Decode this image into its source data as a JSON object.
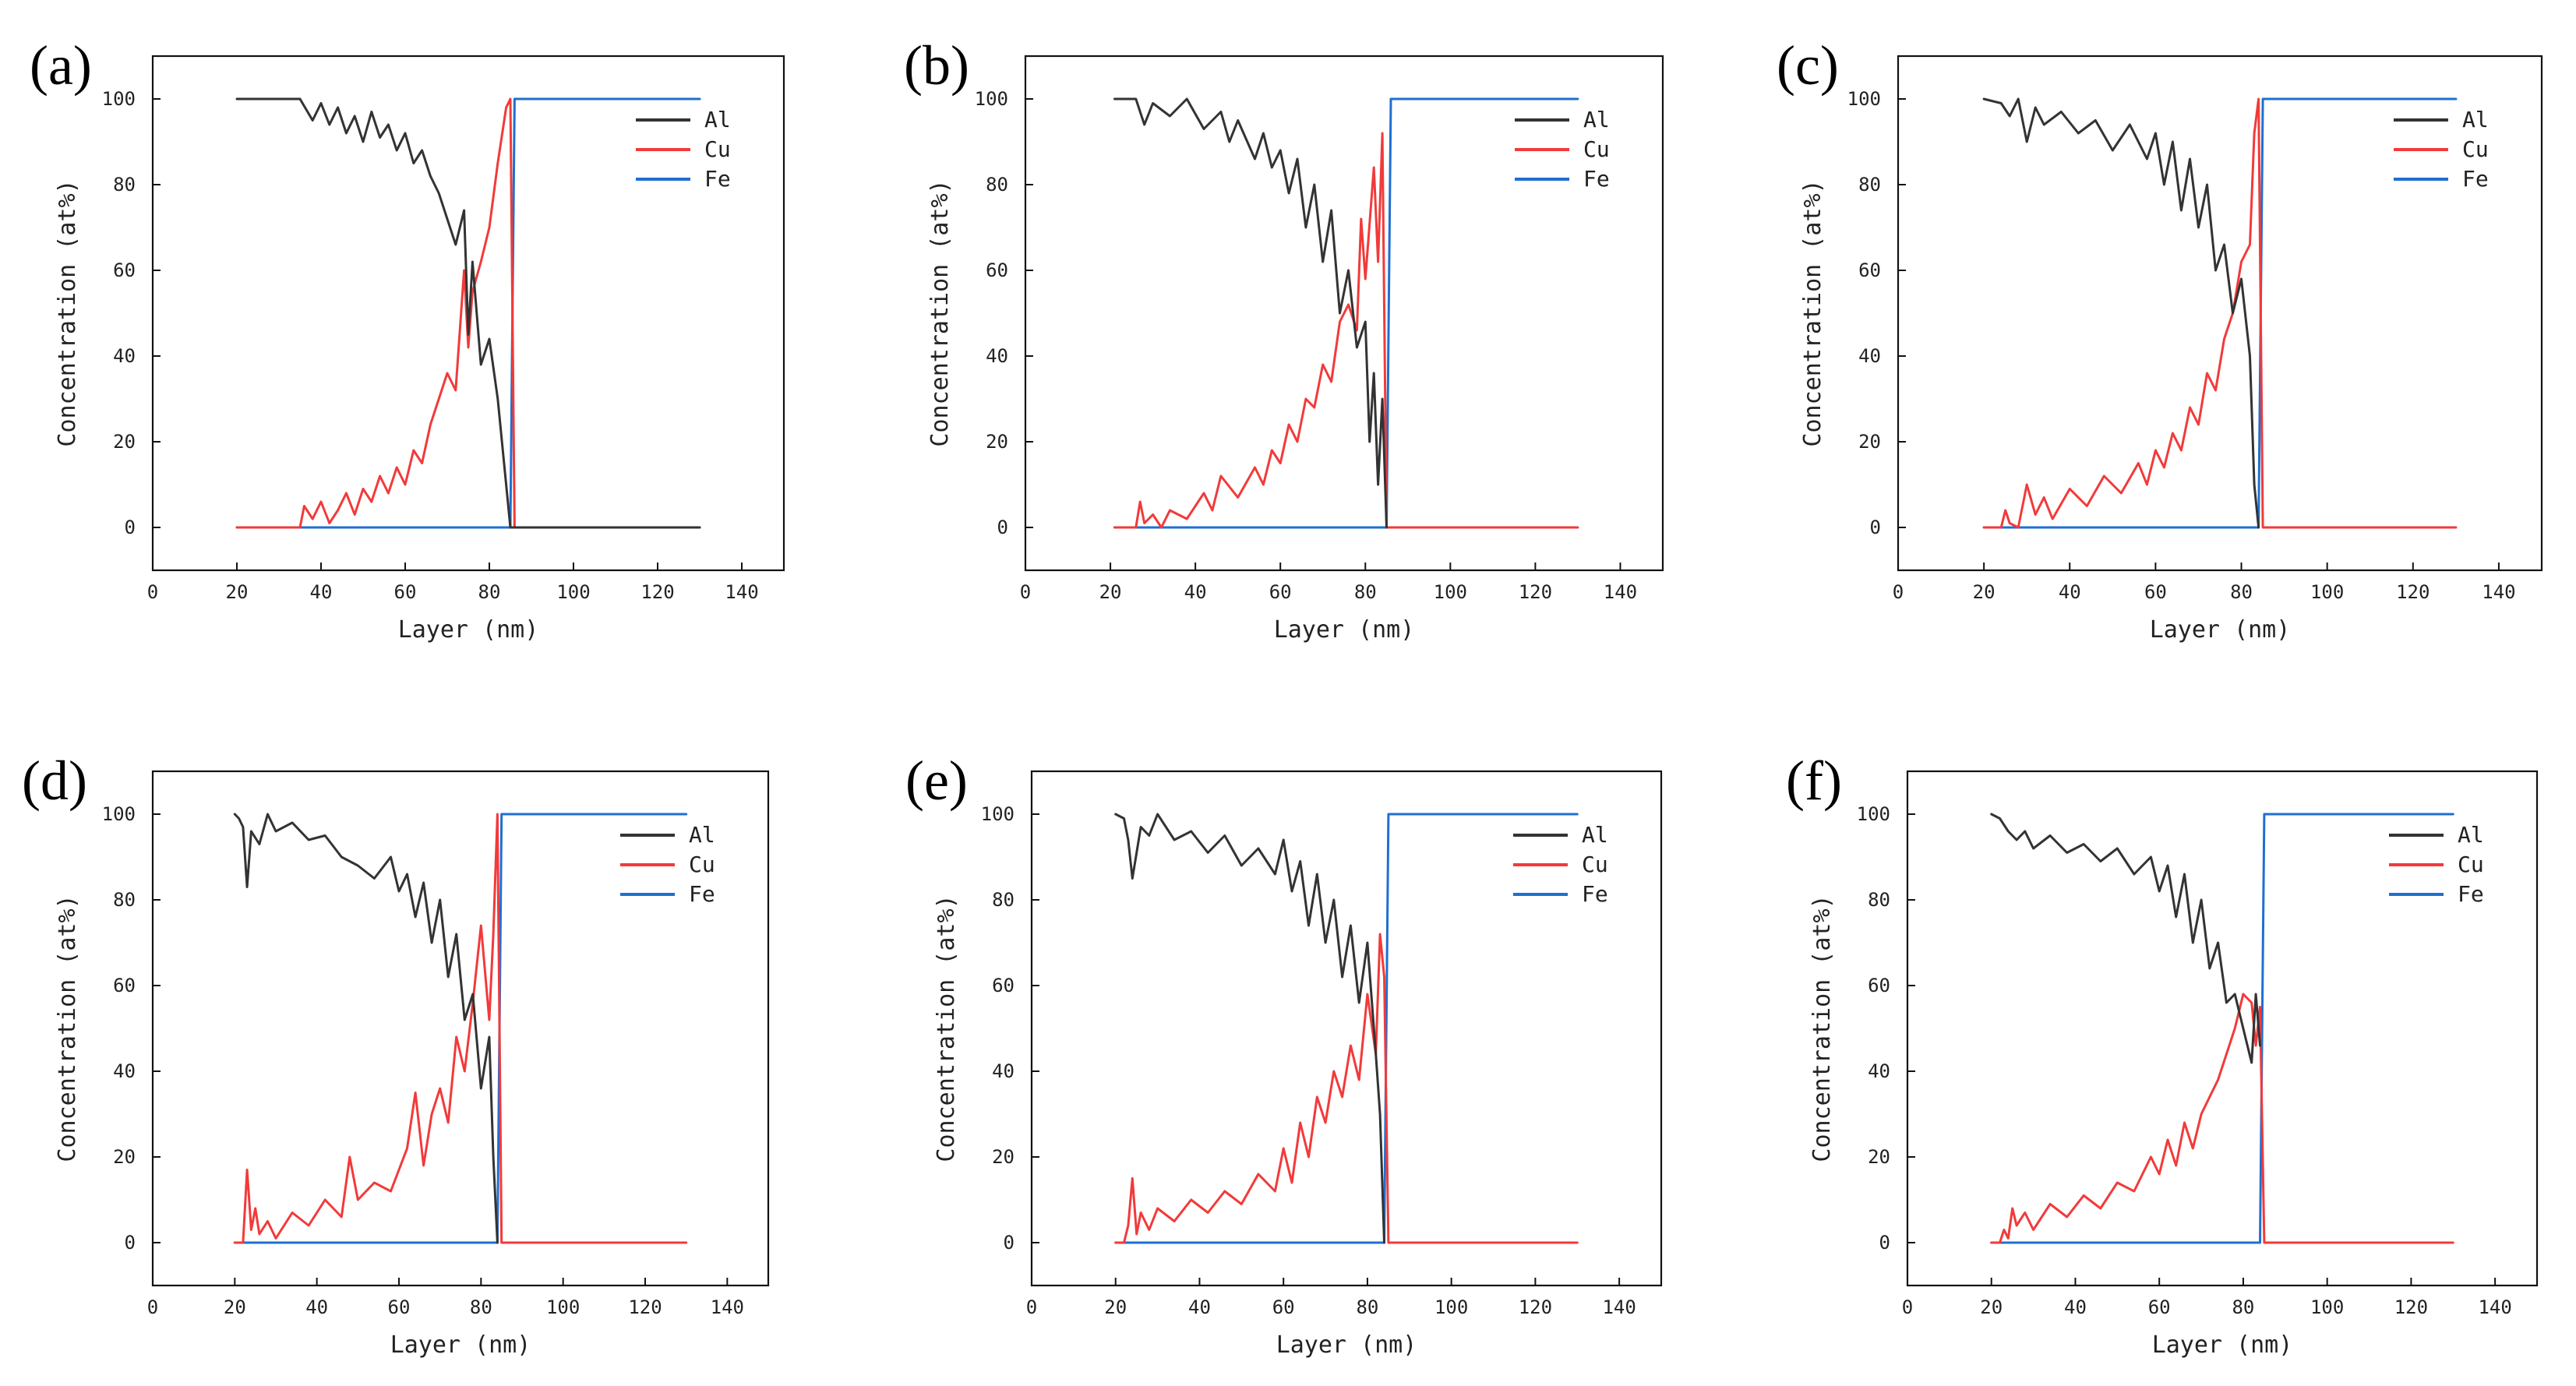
{
  "figure": {
    "panels": [
      "(a)",
      "(b)",
      "(c)",
      "(d)",
      "(e)",
      "(f)"
    ]
  },
  "colors": {
    "Al": "#333333",
    "Cu": "#f23a3a",
    "Fe": "#1f6fd1"
  },
  "chart_data": [
    {
      "panel": "(a)",
      "type": "line",
      "xlabel": "Layer (nm)",
      "ylabel": "Concentration (at%)",
      "xlim": [
        0,
        150
      ],
      "ylim": [
        -10,
        110
      ],
      "xticks": [
        0,
        20,
        40,
        60,
        80,
        100,
        120,
        140
      ],
      "yticks": [
        0,
        20,
        40,
        60,
        80,
        100
      ],
      "legend": [
        "Al",
        "Cu",
        "Fe"
      ],
      "series": [
        {
          "name": "Al",
          "x": [
            20,
            30,
            35,
            38,
            40,
            42,
            44,
            46,
            48,
            50,
            52,
            54,
            56,
            58,
            60,
            62,
            64,
            66,
            68,
            70,
            72,
            74,
            75,
            76,
            78,
            80,
            82,
            84,
            85,
            86,
            90,
            100,
            110,
            120,
            130
          ],
          "y": [
            100,
            100,
            100,
            95,
            99,
            94,
            98,
            92,
            96,
            90,
            97,
            91,
            94,
            88,
            92,
            85,
            88,
            82,
            78,
            72,
            66,
            74,
            45,
            62,
            38,
            44,
            30,
            10,
            0,
            0,
            0,
            0,
            0,
            0,
            0
          ]
        },
        {
          "name": "Cu",
          "x": [
            20,
            30,
            35,
            36,
            38,
            40,
            42,
            44,
            46,
            48,
            50,
            52,
            54,
            56,
            58,
            60,
            62,
            64,
            66,
            68,
            70,
            72,
            74,
            75,
            76,
            78,
            80,
            82,
            84,
            85,
            86,
            90,
            100,
            110,
            120,
            130
          ],
          "y": [
            0,
            0,
            0,
            5,
            2,
            6,
            1,
            4,
            8,
            3,
            9,
            6,
            12,
            8,
            14,
            10,
            18,
            15,
            24,
            30,
            36,
            32,
            60,
            42,
            55,
            62,
            70,
            85,
            98,
            100,
            0,
            0,
            0,
            0,
            0,
            0
          ]
        },
        {
          "name": "Fe",
          "x": [
            20,
            40,
            60,
            80,
            84,
            85,
            86,
            90,
            100,
            110,
            120,
            130
          ],
          "y": [
            0,
            0,
            0,
            0,
            0,
            0,
            100,
            100,
            100,
            100,
            100,
            100
          ]
        }
      ]
    },
    {
      "panel": "(b)",
      "type": "line",
      "xlabel": "Layer (nm)",
      "ylabel": "Concentration (at%)",
      "xlim": [
        0,
        150
      ],
      "ylim": [
        -10,
        110
      ],
      "xticks": [
        0,
        20,
        40,
        60,
        80,
        100,
        120,
        140
      ],
      "yticks": [
        0,
        20,
        40,
        60,
        80,
        100
      ],
      "legend": [
        "Al",
        "Cu",
        "Fe"
      ],
      "series": [
        {
          "name": "Al",
          "x": [
            21,
            26,
            28,
            30,
            34,
            38,
            42,
            46,
            48,
            50,
            54,
            56,
            58,
            60,
            62,
            64,
            66,
            68,
            70,
            72,
            74,
            76,
            78,
            80,
            81,
            82,
            83,
            84,
            85
          ],
          "y": [
            100,
            100,
            94,
            99,
            96,
            100,
            93,
            97,
            90,
            95,
            86,
            92,
            84,
            88,
            78,
            86,
            70,
            80,
            62,
            74,
            50,
            60,
            42,
            48,
            20,
            36,
            10,
            30,
            0
          ]
        },
        {
          "name": "Cu",
          "x": [
            21,
            26,
            27,
            28,
            30,
            32,
            34,
            38,
            42,
            44,
            46,
            50,
            54,
            56,
            58,
            60,
            62,
            64,
            66,
            68,
            70,
            72,
            74,
            76,
            78,
            79,
            80,
            82,
            83,
            84,
            85,
            86,
            90,
            100,
            110,
            120,
            130
          ],
          "y": [
            0,
            0,
            6,
            1,
            3,
            0,
            4,
            2,
            8,
            4,
            12,
            7,
            14,
            10,
            18,
            15,
            24,
            20,
            30,
            28,
            38,
            34,
            48,
            52,
            46,
            72,
            58,
            84,
            62,
            92,
            0,
            0,
            0,
            0,
            0,
            0,
            0
          ]
        },
        {
          "name": "Fe",
          "x": [
            21,
            40,
            60,
            80,
            84,
            85,
            86,
            90,
            100,
            110,
            120,
            130
          ],
          "y": [
            0,
            0,
            0,
            0,
            0,
            0,
            100,
            100,
            100,
            100,
            100,
            100
          ]
        }
      ]
    },
    {
      "panel": "(c)",
      "type": "line",
      "xlabel": "Layer (nm)",
      "ylabel": "Concentration (at%)",
      "xlim": [
        0,
        150
      ],
      "ylim": [
        -10,
        110
      ],
      "xticks": [
        0,
        20,
        40,
        60,
        80,
        100,
        120,
        140
      ],
      "yticks": [
        0,
        20,
        40,
        60,
        80,
        100
      ],
      "legend": [
        "Al",
        "Cu",
        "Fe"
      ],
      "series": [
        {
          "name": "Al",
          "x": [
            20,
            24,
            26,
            28,
            30,
            32,
            34,
            38,
            42,
            46,
            50,
            54,
            58,
            60,
            62,
            64,
            66,
            68,
            70,
            72,
            74,
            76,
            78,
            80,
            82,
            83,
            84
          ],
          "y": [
            100,
            99,
            96,
            100,
            90,
            98,
            94,
            97,
            92,
            95,
            88,
            94,
            86,
            92,
            80,
            90,
            74,
            86,
            70,
            80,
            60,
            66,
            50,
            58,
            40,
            10,
            0
          ]
        },
        {
          "name": "Cu",
          "x": [
            20,
            24,
            25,
            26,
            28,
            30,
            32,
            34,
            36,
            40,
            44,
            48,
            52,
            56,
            58,
            60,
            62,
            64,
            66,
            68,
            70,
            72,
            74,
            76,
            78,
            80,
            82,
            83,
            84,
            85,
            90,
            100,
            110,
            120,
            130
          ],
          "y": [
            0,
            0,
            4,
            1,
            0,
            10,
            3,
            7,
            2,
            9,
            5,
            12,
            8,
            15,
            10,
            18,
            14,
            22,
            18,
            28,
            24,
            36,
            32,
            44,
            50,
            62,
            66,
            92,
            100,
            0,
            0,
            0,
            0,
            0,
            0
          ]
        },
        {
          "name": "Fe",
          "x": [
            20,
            40,
            60,
            80,
            83,
            84,
            85,
            90,
            100,
            110,
            120,
            130
          ],
          "y": [
            0,
            0,
            0,
            0,
            0,
            0,
            100,
            100,
            100,
            100,
            100,
            100
          ]
        }
      ]
    },
    {
      "panel": "(d)",
      "type": "line",
      "xlabel": "Layer (nm)",
      "ylabel": "Concentration (at%)",
      "xlim": [
        0,
        150
      ],
      "ylim": [
        -10,
        110
      ],
      "xticks": [
        0,
        20,
        40,
        60,
        80,
        100,
        120,
        140
      ],
      "yticks": [
        0,
        20,
        40,
        60,
        80,
        100
      ],
      "legend": [
        "Al",
        "Cu",
        "Fe"
      ],
      "series": [
        {
          "name": "Al",
          "x": [
            20,
            21,
            22,
            23,
            24,
            26,
            28,
            30,
            34,
            38,
            42,
            46,
            50,
            54,
            58,
            60,
            62,
            64,
            66,
            68,
            70,
            72,
            74,
            76,
            78,
            80,
            82,
            83,
            84
          ],
          "y": [
            100,
            99,
            97,
            83,
            96,
            93,
            100,
            96,
            98,
            94,
            95,
            90,
            88,
            85,
            90,
            82,
            86,
            76,
            84,
            70,
            80,
            62,
            72,
            52,
            58,
            36,
            48,
            20,
            0
          ]
        },
        {
          "name": "Cu",
          "x": [
            20,
            22,
            23,
            24,
            25,
            26,
            28,
            30,
            34,
            38,
            42,
            46,
            48,
            50,
            54,
            58,
            62,
            64,
            66,
            68,
            70,
            72,
            74,
            76,
            78,
            80,
            82,
            83,
            84,
            85,
            90,
            100,
            110,
            120,
            130
          ],
          "y": [
            0,
            0,
            17,
            3,
            8,
            2,
            5,
            1,
            7,
            4,
            10,
            6,
            20,
            10,
            14,
            12,
            22,
            35,
            18,
            30,
            36,
            28,
            48,
            40,
            56,
            74,
            52,
            72,
            100,
            0,
            0,
            0,
            0,
            0,
            0
          ]
        },
        {
          "name": "Fe",
          "x": [
            20,
            40,
            60,
            80,
            83,
            84,
            85,
            90,
            100,
            110,
            120,
            130
          ],
          "y": [
            0,
            0,
            0,
            0,
            0,
            0,
            100,
            100,
            100,
            100,
            100,
            100
          ]
        }
      ]
    },
    {
      "panel": "(e)",
      "type": "line",
      "xlabel": "Layer (nm)",
      "ylabel": "Concentration (at%)",
      "xlim": [
        0,
        150
      ],
      "ylim": [
        -10,
        110
      ],
      "xticks": [
        0,
        20,
        40,
        60,
        80,
        100,
        120,
        140
      ],
      "yticks": [
        0,
        20,
        40,
        60,
        80,
        100
      ],
      "legend": [
        "Al",
        "Cu",
        "Fe"
      ],
      "series": [
        {
          "name": "Al",
          "x": [
            20,
            22,
            23,
            24,
            26,
            28,
            30,
            34,
            38,
            42,
            46,
            50,
            54,
            58,
            60,
            62,
            64,
            66,
            68,
            70,
            72,
            74,
            76,
            78,
            80,
            82,
            83,
            84
          ],
          "y": [
            100,
            99,
            94,
            85,
            97,
            95,
            100,
            94,
            96,
            91,
            95,
            88,
            92,
            86,
            94,
            82,
            89,
            74,
            86,
            70,
            80,
            62,
            74,
            56,
            70,
            44,
            30,
            0
          ]
        },
        {
          "name": "Cu",
          "x": [
            20,
            22,
            23,
            24,
            25,
            26,
            28,
            30,
            34,
            38,
            42,
            46,
            50,
            54,
            58,
            60,
            62,
            64,
            66,
            68,
            70,
            72,
            74,
            76,
            78,
            80,
            82,
            83,
            84,
            85,
            90,
            100,
            110,
            120,
            130
          ],
          "y": [
            0,
            0,
            4,
            15,
            2,
            7,
            3,
            8,
            5,
            10,
            7,
            12,
            9,
            16,
            12,
            22,
            14,
            28,
            20,
            34,
            28,
            40,
            34,
            46,
            38,
            58,
            44,
            72,
            62,
            0,
            0,
            0,
            0,
            0,
            0
          ]
        },
        {
          "name": "Fe",
          "x": [
            20,
            40,
            60,
            80,
            83,
            84,
            85,
            90,
            100,
            110,
            120,
            130
          ],
          "y": [
            0,
            0,
            0,
            0,
            0,
            0,
            100,
            100,
            100,
            100,
            100,
            100
          ]
        }
      ]
    },
    {
      "panel": "(f)",
      "type": "line",
      "xlabel": "Layer (nm)",
      "ylabel": "Concentration (at%)",
      "xlim": [
        0,
        150
      ],
      "ylim": [
        -10,
        110
      ],
      "xticks": [
        0,
        20,
        40,
        60,
        80,
        100,
        120,
        140
      ],
      "yticks": [
        0,
        20,
        40,
        60,
        80,
        100
      ],
      "legend": [
        "Al",
        "Cu",
        "Fe"
      ],
      "series": [
        {
          "name": "Al",
          "x": [
            20,
            22,
            24,
            26,
            28,
            30,
            34,
            38,
            42,
            46,
            50,
            54,
            58,
            60,
            62,
            64,
            66,
            68,
            70,
            72,
            74,
            76,
            78,
            80,
            82,
            83,
            84
          ],
          "y": [
            100,
            99,
            96,
            94,
            96,
            92,
            95,
            91,
            93,
            89,
            92,
            86,
            90,
            82,
            88,
            76,
            86,
            70,
            80,
            64,
            70,
            56,
            58,
            50,
            42,
            58,
            46
          ]
        },
        {
          "name": "Cu",
          "x": [
            20,
            22,
            23,
            24,
            25,
            26,
            28,
            30,
            34,
            38,
            42,
            46,
            50,
            54,
            58,
            60,
            62,
            64,
            66,
            68,
            70,
            72,
            74,
            76,
            78,
            80,
            82,
            83,
            84,
            85,
            90,
            100,
            110,
            120,
            130
          ],
          "y": [
            0,
            0,
            3,
            1,
            8,
            4,
            7,
            3,
            9,
            6,
            11,
            8,
            14,
            12,
            20,
            16,
            24,
            18,
            28,
            22,
            30,
            34,
            38,
            44,
            50,
            58,
            56,
            46,
            55,
            0,
            0,
            0,
            0,
            0,
            0
          ]
        },
        {
          "name": "Fe",
          "x": [
            20,
            40,
            60,
            80,
            83,
            84,
            85,
            90,
            100,
            110,
            120,
            130
          ],
          "y": [
            0,
            0,
            0,
            0,
            0,
            0,
            100,
            100,
            100,
            100,
            100,
            100
          ]
        }
      ]
    }
  ]
}
